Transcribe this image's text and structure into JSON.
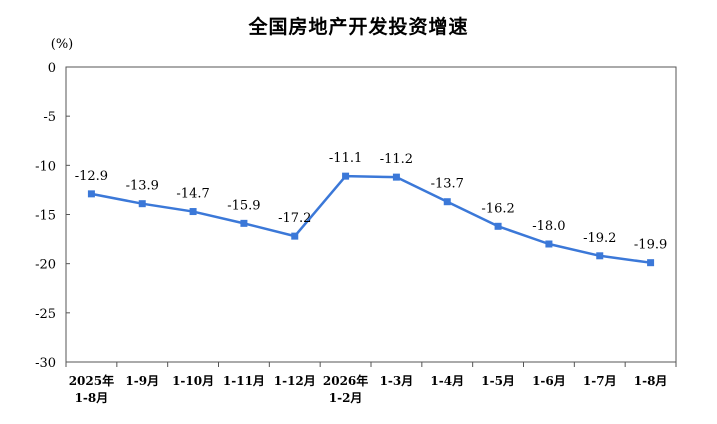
{
  "chart_data": {
    "type": "line",
    "title": "全国房地产开发投资增速",
    "ylabel": "(%)",
    "xlabel": "",
    "ylim": [
      -30,
      0
    ],
    "yticks": [
      "0",
      "-5",
      "-10",
      "-15",
      "-20",
      "-25",
      "-30"
    ],
    "ytick_values": [
      0,
      -5,
      -10,
      -15,
      -20,
      -25,
      -30
    ],
    "categories": [
      [
        "2025年",
        "1-8月"
      ],
      [
        "1-9月"
      ],
      [
        "1-10月"
      ],
      [
        "1-11月"
      ],
      [
        "1-12月"
      ],
      [
        "2026年",
        "1-2月"
      ],
      [
        "1-3月"
      ],
      [
        "1-4月"
      ],
      [
        "1-5月"
      ],
      [
        "1-6月"
      ],
      [
        "1-7月"
      ],
      [
        "1-8月"
      ]
    ],
    "values": [
      -12.9,
      -13.9,
      -14.7,
      -15.9,
      -17.2,
      -11.1,
      -11.2,
      -13.7,
      -16.2,
      -18.0,
      -19.2,
      -19.9
    ],
    "value_labels": [
      "-12.9",
      "-13.9",
      "-14.7",
      "-15.9",
      "-17.2",
      "-11.1",
      "-11.2",
      "-13.7",
      "-16.2",
      "-18.0",
      "-19.2",
      "-19.9"
    ],
    "grid": false,
    "line_color": "#3b78d8",
    "marker": "square"
  }
}
